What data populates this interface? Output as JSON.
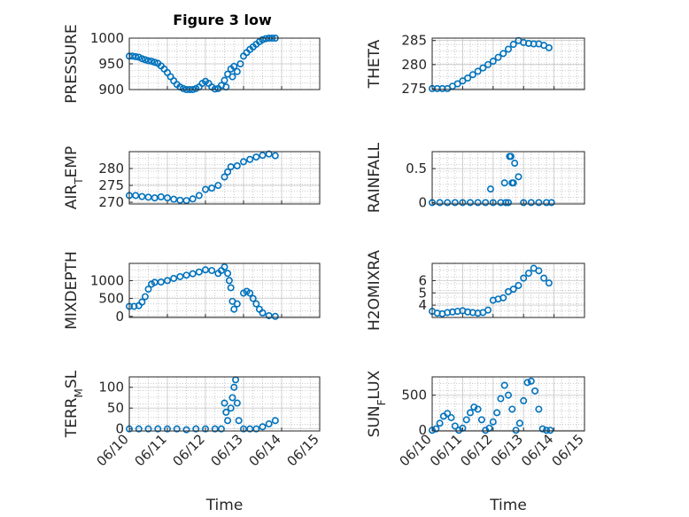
{
  "figure": {
    "title": "Figure 3 low",
    "marker_color": "#0072BD",
    "axis_color": "#262626",
    "grid_color": "#b8b8b8"
  },
  "chart_data": [
    {
      "type": "scatter",
      "ylabel": "PRESSURE",
      "xlim": [
        "06/10",
        "06/15"
      ],
      "ylim": [
        900,
        1000
      ],
      "yticks": [
        "900",
        "950",
        "1000"
      ],
      "xticks": [],
      "xlabel": "",
      "grid": true,
      "points": [
        [
          "06/10 00:00",
          965
        ],
        [
          "06/10 02:00",
          965
        ],
        [
          "06/10 04:00",
          964
        ],
        [
          "06/10 06:00",
          963
        ],
        [
          "06/10 08:00",
          960
        ],
        [
          "06/10 10:00",
          958
        ],
        [
          "06/10 12:00",
          956
        ],
        [
          "06/10 14:00",
          955
        ],
        [
          "06/10 16:00",
          953
        ],
        [
          "06/10 18:00",
          951
        ],
        [
          "06/10 20:00",
          946
        ],
        [
          "06/10 22:00",
          940
        ],
        [
          "06/11 00:00",
          933
        ],
        [
          "06/11 02:00",
          925
        ],
        [
          "06/11 04:00",
          917
        ],
        [
          "06/11 06:00",
          910
        ],
        [
          "06/11 08:00",
          905
        ],
        [
          "06/11 10:00",
          902
        ],
        [
          "06/11 12:00",
          900
        ],
        [
          "06/11 14:00",
          900
        ],
        [
          "06/11 16:00",
          900
        ],
        [
          "06/11 18:00",
          902
        ],
        [
          "06/11 20:00",
          905
        ],
        [
          "06/11 22:00",
          912
        ],
        [
          "06/12 00:00",
          916
        ],
        [
          "06/12 02:00",
          912
        ],
        [
          "06/12 04:00",
          905
        ],
        [
          "06/12 06:00",
          901
        ],
        [
          "06/12 08:00",
          902
        ],
        [
          "06/12 10:00",
          908
        ],
        [
          "06/12 12:00",
          918
        ],
        [
          "06/12 13:00",
          905
        ],
        [
          "06/12 14:00",
          930
        ],
        [
          "06/12 16:00",
          940
        ],
        [
          "06/12 17:00",
          925
        ],
        [
          "06/12 18:00",
          945
        ],
        [
          "06/12 20:00",
          935
        ],
        [
          "06/12 22:00",
          950
        ],
        [
          "06/13 00:00",
          965
        ],
        [
          "06/13 02:00",
          972
        ],
        [
          "06/13 04:00",
          978
        ],
        [
          "06/13 06:00",
          983
        ],
        [
          "06/13 08:00",
          988
        ],
        [
          "06/13 10:00",
          993
        ],
        [
          "06/13 12:00",
          997
        ],
        [
          "06/13 14:00",
          999
        ],
        [
          "06/13 16:00",
          1000
        ],
        [
          "06/13 18:00",
          1000
        ],
        [
          "06/13 20:00",
          1000
        ]
      ]
    },
    {
      "type": "scatter",
      "ylabel": "THETA",
      "xlim": [
        "06/10",
        "06/15"
      ],
      "ylim": [
        274.8,
        285.5
      ],
      "yticks": [
        "275",
        "280",
        "285"
      ],
      "xticks": [],
      "xlabel": "",
      "grid": true,
      "points": [
        [
          "06/10 00:00",
          275
        ],
        [
          "06/10 04:00",
          275
        ],
        [
          "06/10 08:00",
          275
        ],
        [
          "06/10 12:00",
          275
        ],
        [
          "06/10 16:00",
          275.5
        ],
        [
          "06/10 20:00",
          276
        ],
        [
          "06/11 00:00",
          276.6
        ],
        [
          "06/11 04:00",
          277.2
        ],
        [
          "06/11 08:00",
          277.9
        ],
        [
          "06/11 12:00",
          278.6
        ],
        [
          "06/11 16:00",
          279.3
        ],
        [
          "06/11 20:00",
          280
        ],
        [
          "06/12 00:00",
          280.7
        ],
        [
          "06/12 04:00",
          281.5
        ],
        [
          "06/12 08:00",
          282.3
        ],
        [
          "06/12 12:00",
          283.2
        ],
        [
          "06/12 16:00",
          284.2
        ],
        [
          "06/12 20:00",
          285
        ],
        [
          "06/13 00:00",
          284.6
        ],
        [
          "06/13 04:00",
          284.4
        ],
        [
          "06/13 08:00",
          284.3
        ],
        [
          "06/13 12:00",
          284.3
        ],
        [
          "06/13 16:00",
          284
        ],
        [
          "06/13 20:00",
          283.5
        ]
      ]
    },
    {
      "type": "scatter",
      "ylabel": "AIR_TEMP",
      "xlim": [
        "06/10",
        "06/15"
      ],
      "ylim": [
        269.5,
        285
      ],
      "yticks": [
        "270",
        "275",
        "280"
      ],
      "xticks": [],
      "xlabel": "",
      "grid": true,
      "points": [
        [
          "06/10 00:00",
          272
        ],
        [
          "06/10 04:00",
          272
        ],
        [
          "06/10 08:00",
          271.7
        ],
        [
          "06/10 12:00",
          271.5
        ],
        [
          "06/10 16:00",
          271.3
        ],
        [
          "06/10 20:00",
          271.6
        ],
        [
          "06/11 00:00",
          271.3
        ],
        [
          "06/11 04:00",
          270.9
        ],
        [
          "06/11 08:00",
          270.6
        ],
        [
          "06/11 12:00",
          270.5
        ],
        [
          "06/11 16:00",
          271
        ],
        [
          "06/11 20:00",
          272
        ],
        [
          "06/12 00:00",
          273.8
        ],
        [
          "06/12 04:00",
          274.2
        ],
        [
          "06/12 08:00",
          275
        ],
        [
          "06/12 12:00",
          277.5
        ],
        [
          "06/12 14:00",
          279
        ],
        [
          "06/12 16:00",
          280.5
        ],
        [
          "06/12 20:00",
          280.8
        ],
        [
          "06/13 00:00",
          282
        ],
        [
          "06/13 04:00",
          282.7
        ],
        [
          "06/13 08:00",
          283.4
        ],
        [
          "06/13 12:00",
          283.9
        ],
        [
          "06/13 16:00",
          284.3
        ],
        [
          "06/13 20:00",
          283.8
        ]
      ]
    },
    {
      "type": "scatter",
      "ylabel": "RAINFALL",
      "xlim": [
        "06/10",
        "06/15"
      ],
      "ylim": [
        -0.02,
        0.75
      ],
      "yticks": [
        "0",
        "0.5"
      ],
      "xticks": [],
      "xlabel": "",
      "grid": true,
      "points": [
        [
          "06/10 00:00",
          0
        ],
        [
          "06/10 06:00",
          0
        ],
        [
          "06/10 12:00",
          0
        ],
        [
          "06/10 18:00",
          0
        ],
        [
          "06/11 00:00",
          0
        ],
        [
          "06/11 06:00",
          0
        ],
        [
          "06/11 12:00",
          0
        ],
        [
          "06/11 18:00",
          0
        ],
        [
          "06/12 00:00",
          0
        ],
        [
          "06/12 06:00",
          0
        ],
        [
          "06/12 10:00",
          0
        ],
        [
          "06/12 12:00",
          0
        ],
        [
          "06/12 13:00",
          0.68
        ],
        [
          "06/12 14:00",
          0.68
        ],
        [
          "06/12 15:00",
          0.29
        ],
        [
          "06/12 16:00",
          0.29
        ],
        [
          "06/12 17:00",
          0.58
        ],
        [
          "06/12 20:00",
          0.38
        ],
        [
          "06/11 22:00",
          0.2
        ],
        [
          "06/12 09:00",
          0.29
        ],
        [
          "06/13 00:00",
          0
        ],
        [
          "06/13 06:00",
          0
        ],
        [
          "06/13 12:00",
          0
        ],
        [
          "06/13 18:00",
          0
        ],
        [
          "06/13 22:00",
          0
        ]
      ]
    },
    {
      "type": "scatter",
      "ylabel": "MIXDEPTH",
      "xlim": [
        "06/10",
        "06/15"
      ],
      "ylim": [
        -30,
        1480
      ],
      "yticks": [
        "0",
        "500",
        "1000"
      ],
      "xticks": [],
      "xlabel": "",
      "grid": true,
      "points": [
        [
          "06/10 00:00",
          280
        ],
        [
          "06/10 03:00",
          280
        ],
        [
          "06/10 06:00",
          300
        ],
        [
          "06/10 08:00",
          400
        ],
        [
          "06/10 10:00",
          550
        ],
        [
          "06/10 12:00",
          760
        ],
        [
          "06/10 14:00",
          900
        ],
        [
          "06/10 16:00",
          950
        ],
        [
          "06/10 20:00",
          960
        ],
        [
          "06/11 00:00",
          1000
        ],
        [
          "06/11 04:00",
          1060
        ],
        [
          "06/11 08:00",
          1110
        ],
        [
          "06/11 12:00",
          1150
        ],
        [
          "06/11 16:00",
          1190
        ],
        [
          "06/11 20:00",
          1240
        ],
        [
          "06/12 00:00",
          1300
        ],
        [
          "06/12 04:00",
          1280
        ],
        [
          "06/12 08:00",
          1200
        ],
        [
          "06/12 10:00",
          1280
        ],
        [
          "06/12 12:00",
          1380
        ],
        [
          "06/12 14:00",
          1200
        ],
        [
          "06/12 15:00",
          1000
        ],
        [
          "06/12 16:00",
          800
        ],
        [
          "06/12 17:00",
          420
        ],
        [
          "06/12 18:00",
          200
        ],
        [
          "06/12 20:00",
          350
        ],
        [
          "06/13 00:00",
          650
        ],
        [
          "06/13 02:00",
          700
        ],
        [
          "06/13 04:00",
          650
        ],
        [
          "06/13 06:00",
          500
        ],
        [
          "06/13 08:00",
          350
        ],
        [
          "06/13 10:00",
          200
        ],
        [
          "06/13 12:00",
          100
        ],
        [
          "06/13 16:00",
          20
        ],
        [
          "06/13 20:00",
          0
        ]
      ]
    },
    {
      "type": "scatter",
      "ylabel": "H2OMIXRA",
      "xlim": [
        "06/10",
        "06/15"
      ],
      "ylim": [
        3.0,
        7.4
      ],
      "yticks": [
        "4",
        "5",
        "6"
      ],
      "xticks": [],
      "xlabel": "",
      "grid": true,
      "points": [
        [
          "06/10 00:00",
          3.5
        ],
        [
          "06/10 04:00",
          3.35
        ],
        [
          "06/10 08:00",
          3.3
        ],
        [
          "06/10 12:00",
          3.4
        ],
        [
          "06/10 16:00",
          3.45
        ],
        [
          "06/10 20:00",
          3.5
        ],
        [
          "06/11 00:00",
          3.55
        ],
        [
          "06/11 04:00",
          3.45
        ],
        [
          "06/11 08:00",
          3.4
        ],
        [
          "06/11 12:00",
          3.35
        ],
        [
          "06/11 16:00",
          3.4
        ],
        [
          "06/11 20:00",
          3.6
        ],
        [
          "06/12 00:00",
          4.4
        ],
        [
          "06/12 04:00",
          4.5
        ],
        [
          "06/12 08:00",
          4.6
        ],
        [
          "06/12 12:00",
          5.1
        ],
        [
          "06/12 16:00",
          5.3
        ],
        [
          "06/12 20:00",
          5.6
        ],
        [
          "06/13 00:00",
          6.2
        ],
        [
          "06/13 04:00",
          6.6
        ],
        [
          "06/13 08:00",
          7.0
        ],
        [
          "06/13 12:00",
          6.8
        ],
        [
          "06/13 16:00",
          6.2
        ],
        [
          "06/13 20:00",
          5.8
        ]
      ]
    },
    {
      "type": "scatter",
      "ylabel": "TERR_MSL",
      "xlim": [
        "06/10",
        "06/15"
      ],
      "ylim": [
        -5,
        125
      ],
      "yticks": [
        "0",
        "50",
        "100"
      ],
      "xticks": [
        "06/10",
        "06/11",
        "06/12",
        "06/13",
        "06/14",
        "06/15"
      ],
      "xlabel": "Time",
      "grid": true,
      "points": [
        [
          "06/10 00:00",
          0
        ],
        [
          "06/10 06:00",
          0
        ],
        [
          "06/10 12:00",
          0
        ],
        [
          "06/10 18:00",
          0
        ],
        [
          "06/11 00:00",
          0
        ],
        [
          "06/11 06:00",
          0
        ],
        [
          "06/11 12:00",
          -2
        ],
        [
          "06/11 18:00",
          0
        ],
        [
          "06/12 00:00",
          0
        ],
        [
          "06/12 06:00",
          0
        ],
        [
          "06/12 10:00",
          0
        ],
        [
          "06/12 12:00",
          62
        ],
        [
          "06/12 13:00",
          40
        ],
        [
          "06/12 14:00",
          20
        ],
        [
          "06/12 16:00",
          50
        ],
        [
          "06/12 17:00",
          75
        ],
        [
          "06/12 18:00",
          100
        ],
        [
          "06/12 19:00",
          118
        ],
        [
          "06/12 20:00",
          62
        ],
        [
          "06/12 21:00",
          20
        ],
        [
          "06/13 00:00",
          0
        ],
        [
          "06/13 04:00",
          0
        ],
        [
          "06/13 08:00",
          0
        ],
        [
          "06/13 12:00",
          5
        ],
        [
          "06/13 16:00",
          12
        ],
        [
          "06/13 20:00",
          20
        ]
      ]
    },
    {
      "type": "scatter",
      "ylabel": "SUN_FLUX",
      "xlim": [
        "06/10",
        "06/15"
      ],
      "ylim": [
        -10,
        760
      ],
      "yticks": [
        "0",
        "500"
      ],
      "xticks": [
        "06/10",
        "06/11",
        "06/12",
        "06/13",
        "06/14",
        "06/15"
      ],
      "xlabel": "Time",
      "grid": true,
      "points": [
        [
          "06/10 00:00",
          0
        ],
        [
          "06/10 03:00",
          20
        ],
        [
          "06/10 06:00",
          100
        ],
        [
          "06/10 09:00",
          200
        ],
        [
          "06/10 12:00",
          240
        ],
        [
          "06/10 15:00",
          180
        ],
        [
          "06/10 18:00",
          60
        ],
        [
          "06/10 21:00",
          0
        ],
        [
          "06/11 00:00",
          30
        ],
        [
          "06/11 03:00",
          150
        ],
        [
          "06/11 06:00",
          250
        ],
        [
          "06/11 09:00",
          330
        ],
        [
          "06/11 12:00",
          300
        ],
        [
          "06/11 15:00",
          150
        ],
        [
          "06/11 18:00",
          0
        ],
        [
          "06/11 21:00",
          30
        ],
        [
          "06/12 00:00",
          120
        ],
        [
          "06/12 03:00",
          250
        ],
        [
          "06/12 06:00",
          450
        ],
        [
          "06/12 09:00",
          640
        ],
        [
          "06/12 12:00",
          500
        ],
        [
          "06/12 15:00",
          300
        ],
        [
          "06/12 18:00",
          0
        ],
        [
          "06/12 21:00",
          100
        ],
        [
          "06/13 00:00",
          420
        ],
        [
          "06/13 03:00",
          680
        ],
        [
          "06/13 06:00",
          700
        ],
        [
          "06/13 09:00",
          560
        ],
        [
          "06/13 12:00",
          300
        ],
        [
          "06/13 15:00",
          20
        ],
        [
          "06/13 18:00",
          0
        ],
        [
          "06/13 21:00",
          0
        ]
      ]
    }
  ]
}
